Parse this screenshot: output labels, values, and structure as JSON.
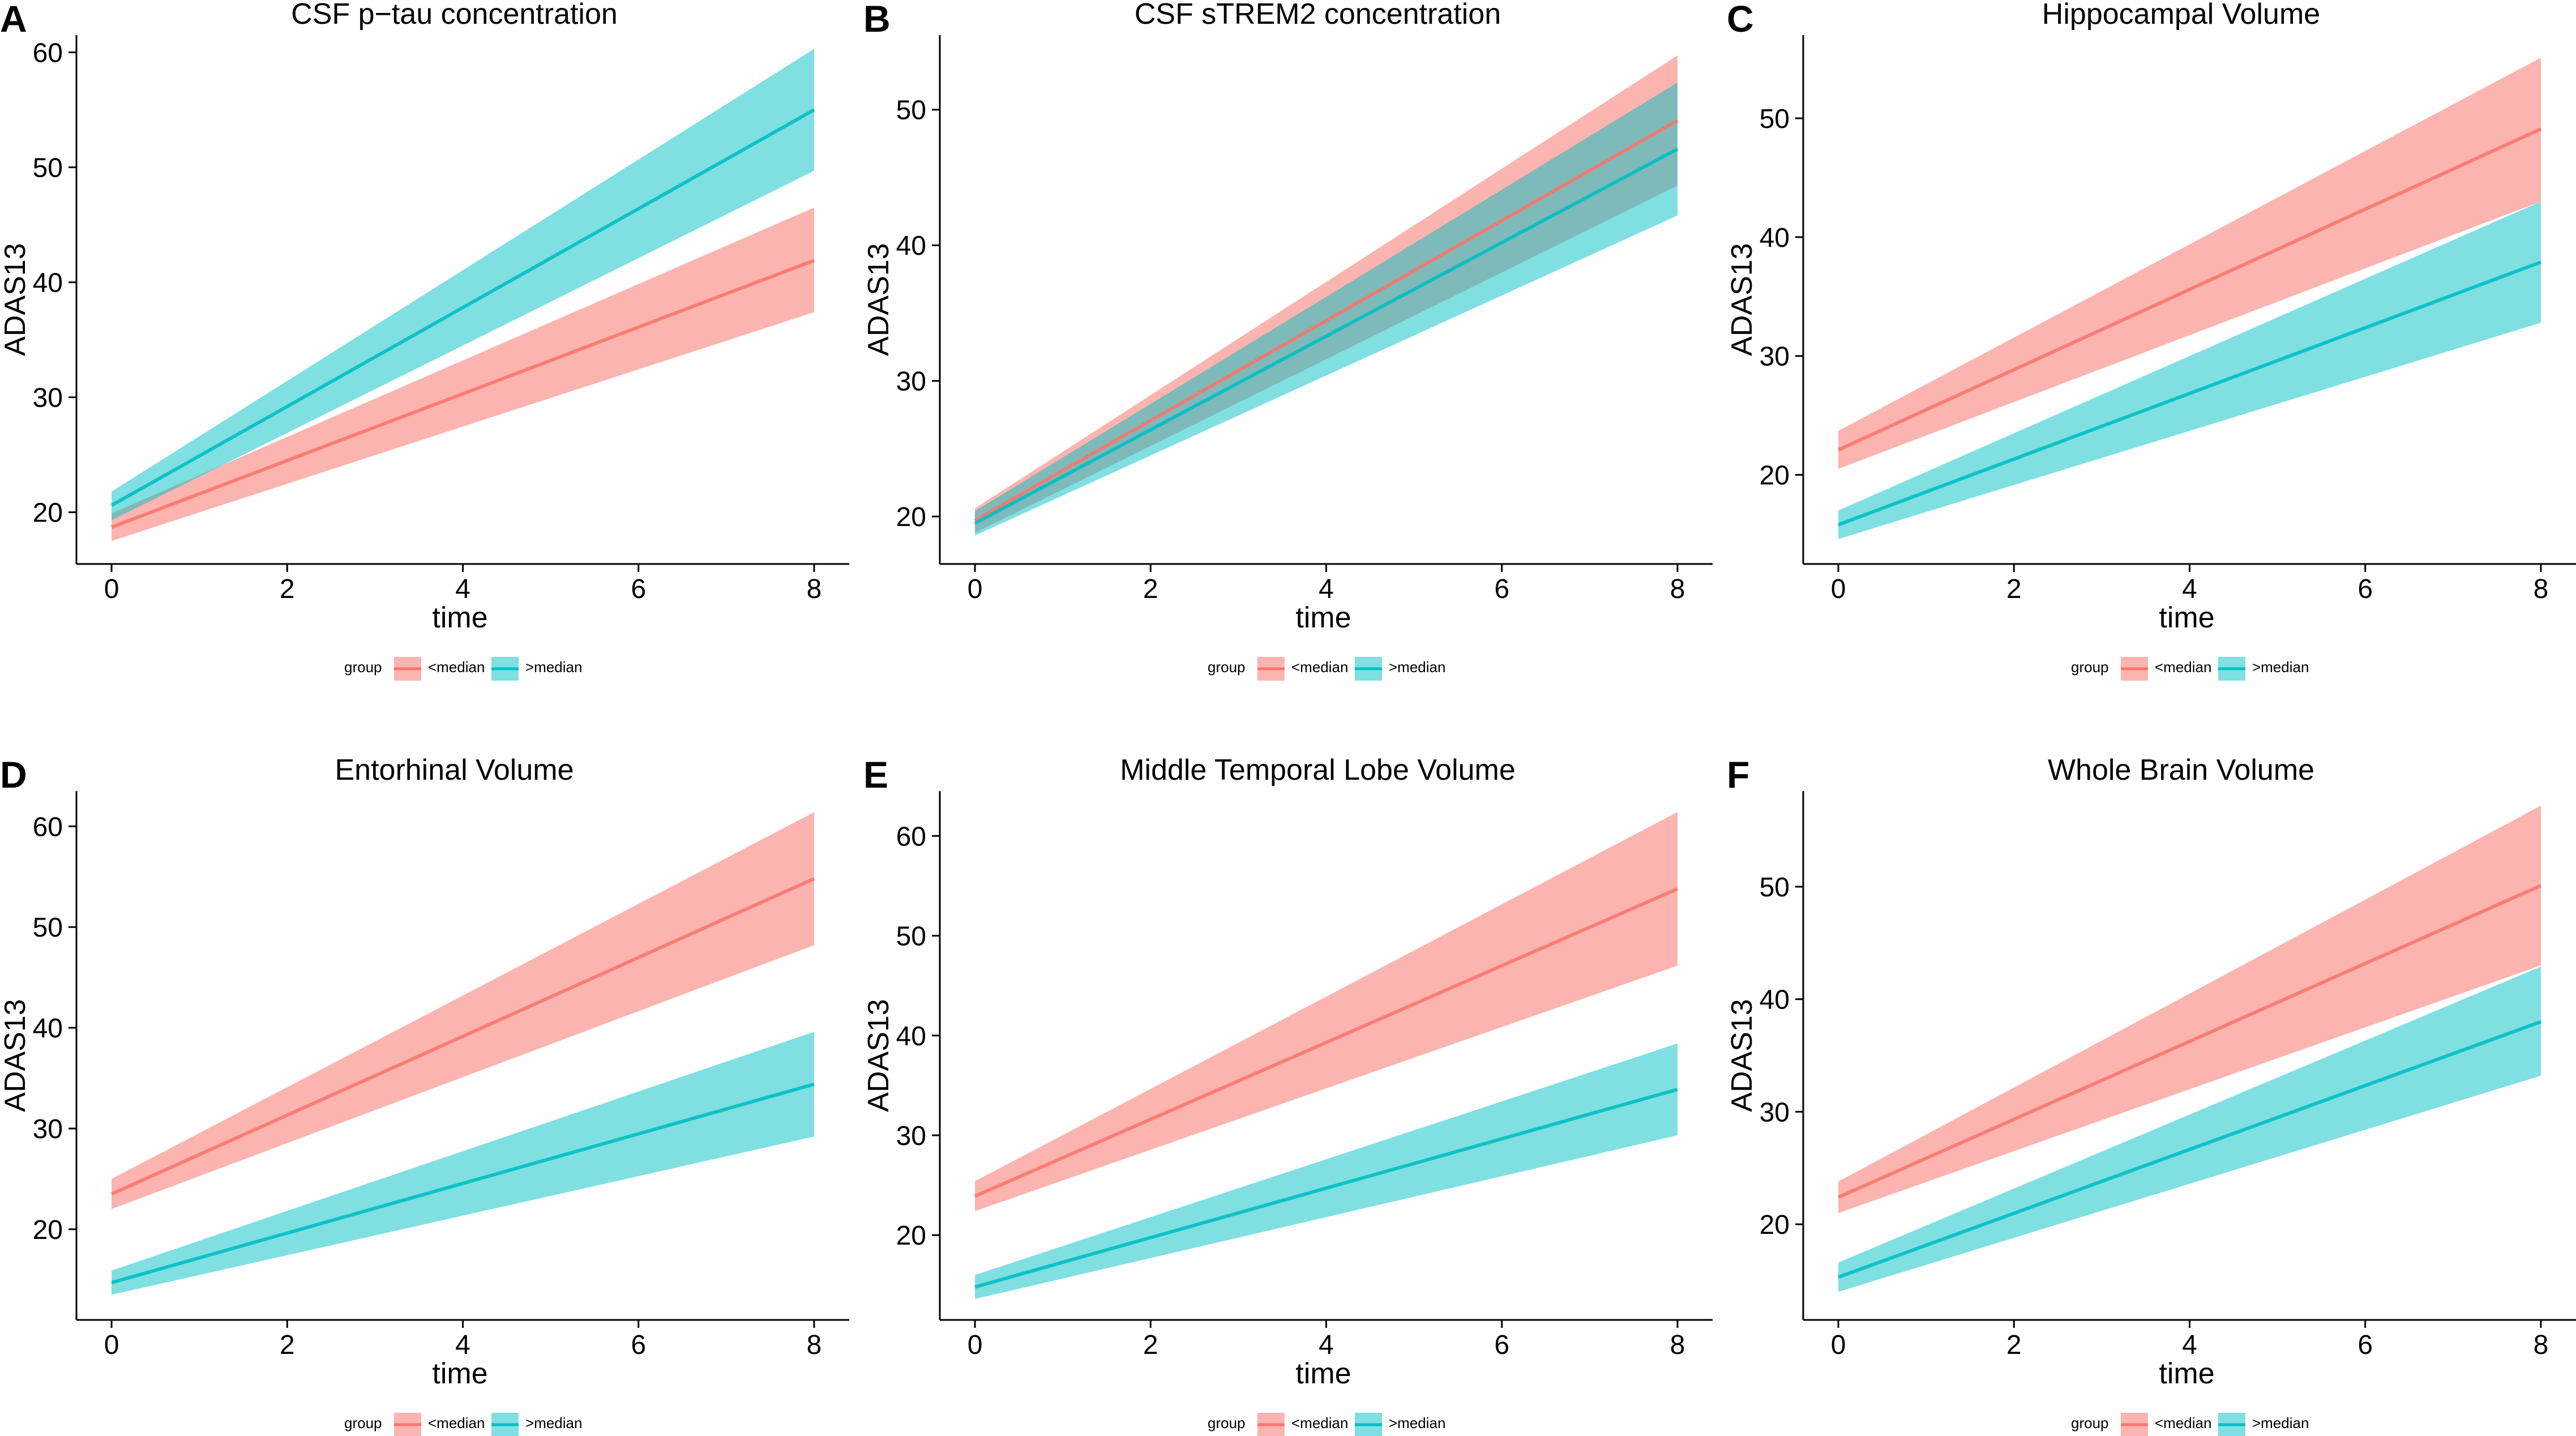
{
  "colors": {
    "below_median": "#F8766D",
    "above_median": "#00BFC4",
    "below_median_band": "#F8766D",
    "above_median_band": "#00BFC4",
    "axis": "#000000",
    "background": "#FFFFFF"
  },
  "chart_data": [
    {
      "panel": "A",
      "type": "line",
      "title": "CSF p−tau concentration",
      "xlabel": "time",
      "ylabel": "ADAS13",
      "xlim": [
        -0.4,
        8.4
      ],
      "ylim": [
        15.5,
        61.5
      ],
      "xticks": [
        0,
        2,
        4,
        6,
        8
      ],
      "yticks": [
        20,
        30,
        40,
        50,
        60
      ],
      "grid": false,
      "legend": {
        "title": "group",
        "placement": "bottom",
        "labels": [
          "<median",
          ">median"
        ]
      },
      "series": [
        {
          "name": "<median",
          "x": [
            0,
            8
          ],
          "y": [
            18.7,
            41.9
          ],
          "lower": [
            17.5,
            37.4
          ],
          "upper": [
            19.9,
            46.5
          ]
        },
        {
          "name": ">median",
          "x": [
            0,
            8
          ],
          "y": [
            20.6,
            55.0
          ],
          "lower": [
            19.3,
            49.7
          ],
          "upper": [
            21.8,
            60.3
          ]
        }
      ]
    },
    {
      "panel": "B",
      "type": "line",
      "title": "CSF sTREM2 concentration",
      "xlabel": "time",
      "ylabel": "ADAS13",
      "xlim": [
        -0.4,
        8.4
      ],
      "ylim": [
        16.5,
        55.5
      ],
      "xticks": [
        0,
        2,
        4,
        6,
        8
      ],
      "yticks": [
        20,
        30,
        40,
        50
      ],
      "grid": false,
      "legend": {
        "title": "group",
        "placement": "bottom",
        "labels": [
          "<median",
          ">median"
        ]
      },
      "series": [
        {
          "name": "<median",
          "x": [
            0,
            8
          ],
          "y": [
            19.7,
            49.2
          ],
          "lower": [
            18.8,
            44.4
          ],
          "upper": [
            20.6,
            54.0
          ]
        },
        {
          "name": ">median",
          "x": [
            0,
            8
          ],
          "y": [
            19.5,
            47.1
          ],
          "lower": [
            18.6,
            42.2
          ],
          "upper": [
            20.4,
            52.0
          ]
        }
      ]
    },
    {
      "panel": "C",
      "type": "line",
      "title": "Hippocampal Volume",
      "xlabel": "time",
      "ylabel": "ADAS13",
      "xlim": [
        -0.4,
        8.4
      ],
      "ylim": [
        12.5,
        57.0
      ],
      "xticks": [
        0,
        2,
        4,
        6,
        8
      ],
      "yticks": [
        20,
        30,
        40,
        50
      ],
      "grid": false,
      "legend": {
        "title": "group",
        "placement": "bottom",
        "labels": [
          "<median",
          ">median"
        ]
      },
      "series": [
        {
          "name": "<median",
          "x": [
            0,
            8
          ],
          "y": [
            22.1,
            49.1
          ],
          "lower": [
            20.5,
            43.0
          ],
          "upper": [
            23.7,
            55.1
          ]
        },
        {
          "name": ">median",
          "x": [
            0,
            8
          ],
          "y": [
            15.8,
            37.9
          ],
          "lower": [
            14.6,
            32.8
          ],
          "upper": [
            17.0,
            43.0
          ]
        }
      ]
    },
    {
      "panel": "D",
      "type": "line",
      "title": "Entorhinal Volume",
      "xlabel": "time",
      "ylabel": "ADAS13",
      "xlim": [
        -0.4,
        8.4
      ],
      "ylim": [
        11.0,
        63.5
      ],
      "xticks": [
        0,
        2,
        4,
        6,
        8
      ],
      "yticks": [
        20,
        30,
        40,
        50,
        60
      ],
      "grid": false,
      "legend": {
        "title": "group",
        "placement": "bottom",
        "labels": [
          "<median",
          ">median"
        ]
      },
      "series": [
        {
          "name": "<median",
          "x": [
            0,
            8
          ],
          "y": [
            23.5,
            54.8
          ],
          "lower": [
            22.0,
            48.2
          ],
          "upper": [
            25.0,
            61.4
          ]
        },
        {
          "name": ">median",
          "x": [
            0,
            8
          ],
          "y": [
            14.7,
            34.4
          ],
          "lower": [
            13.5,
            29.2
          ],
          "upper": [
            15.9,
            39.6
          ]
        }
      ]
    },
    {
      "panel": "E",
      "type": "line",
      "title": "Middle Temporal Lobe Volume",
      "xlabel": "time",
      "ylabel": "ADAS13",
      "xlim": [
        -0.4,
        8.4
      ],
      "ylim": [
        11.5,
        64.5
      ],
      "xticks": [
        0,
        2,
        4,
        6,
        8
      ],
      "yticks": [
        20,
        30,
        40,
        50,
        60
      ],
      "grid": false,
      "legend": {
        "title": "group",
        "placement": "bottom",
        "labels": [
          "<median",
          ">median"
        ]
      },
      "series": [
        {
          "name": "<median",
          "x": [
            0,
            8
          ],
          "y": [
            23.9,
            54.7
          ],
          "lower": [
            22.4,
            47.0
          ],
          "upper": [
            25.4,
            62.4
          ]
        },
        {
          "name": ">median",
          "x": [
            0,
            8
          ],
          "y": [
            14.8,
            34.6
          ],
          "lower": [
            13.6,
            30.0
          ],
          "upper": [
            16.0,
            39.2
          ]
        }
      ]
    },
    {
      "panel": "F",
      "type": "line",
      "title": "Whole Brain Volume",
      "xlabel": "time",
      "ylabel": "ADAS13",
      "xlim": [
        -0.4,
        8.4
      ],
      "ylim": [
        11.5,
        58.5
      ],
      "xticks": [
        0,
        2,
        4,
        6,
        8
      ],
      "yticks": [
        20,
        30,
        40,
        50
      ],
      "grid": false,
      "legend": {
        "title": "group",
        "placement": "bottom",
        "labels": [
          "<median",
          ">median"
        ]
      },
      "series": [
        {
          "name": "<median",
          "x": [
            0,
            8
          ],
          "y": [
            22.4,
            50.1
          ],
          "lower": [
            21.0,
            43.0
          ],
          "upper": [
            23.8,
            57.2
          ]
        },
        {
          "name": ">median",
          "x": [
            0,
            8
          ],
          "y": [
            15.3,
            38.0
          ],
          "lower": [
            14.0,
            33.2
          ],
          "upper": [
            16.6,
            42.9
          ]
        }
      ]
    }
  ]
}
